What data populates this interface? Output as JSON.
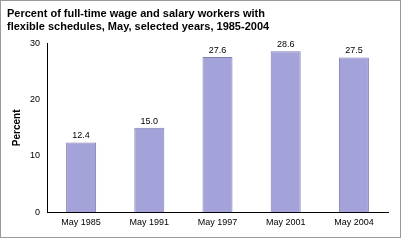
{
  "chart_data": {
    "type": "bar",
    "title": [
      "Percent of full-time wage and salary workers with",
      "flexible schedules, May, selected years, 1985-2004"
    ],
    "y_label": "Percent",
    "categories": [
      "May 1985",
      "May 1991",
      "May 1997",
      "May 2001",
      "May 2004"
    ],
    "values": [
      12.4,
      15.0,
      27.6,
      28.6,
      27.5
    ],
    "value_labels": [
      "12.4",
      "15.0",
      "27.6",
      "28.6",
      "27.5"
    ],
    "color": "#a3a3d9",
    "ylim": [
      0,
      30
    ],
    "yticks": [
      0,
      10,
      20,
      30
    ],
    "grid": false,
    "data_labels": true
  }
}
